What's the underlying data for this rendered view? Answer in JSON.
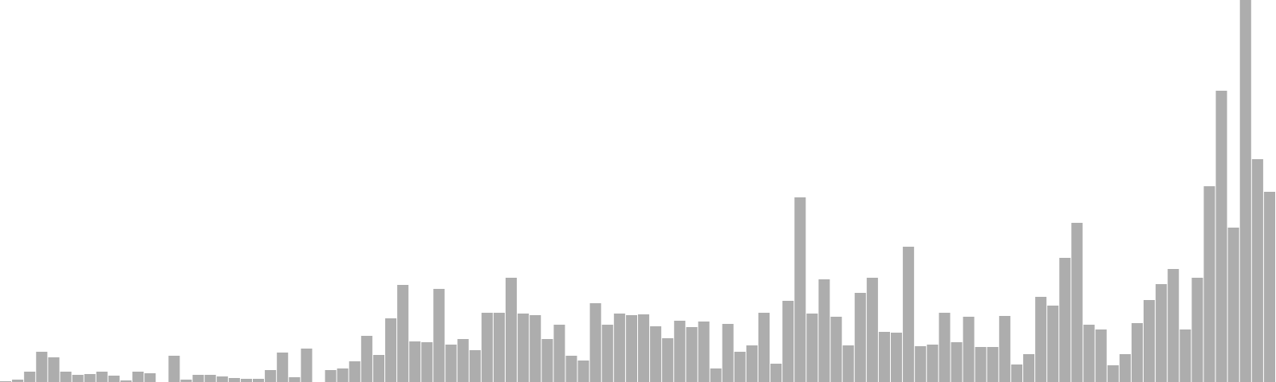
{
  "chart_data": {
    "type": "bar",
    "xlabel": "",
    "ylabel": "",
    "ylim": [
      0,
      480
    ],
    "grid": false,
    "legend": "none",
    "bar_color": "#adadad",
    "values": [
      1,
      3,
      13,
      38,
      31,
      13,
      9,
      10,
      13,
      8,
      2,
      13,
      11,
      0,
      33,
      3,
      9,
      9,
      7,
      5,
      4,
      4,
      15,
      37,
      6,
      42,
      0,
      15,
      17,
      26,
      58,
      34,
      80,
      122,
      51,
      50,
      117,
      47,
      54,
      40,
      87,
      87,
      131,
      86,
      84,
      54,
      72,
      33,
      27,
      99,
      72,
      86,
      84,
      85,
      70,
      55,
      77,
      69,
      76,
      17,
      73,
      38,
      46,
      87,
      23,
      102,
      232,
      86,
      129,
      82,
      46,
      112,
      131,
      63,
      62,
      170,
      45,
      47,
      87,
      50,
      82,
      44,
      44,
      83,
      22,
      35,
      107,
      96,
      156,
      200,
      72,
      66,
      21,
      35,
      74,
      103,
      123,
      142,
      66,
      131,
      246,
      366,
      194,
      480,
      280,
      239
    ]
  }
}
